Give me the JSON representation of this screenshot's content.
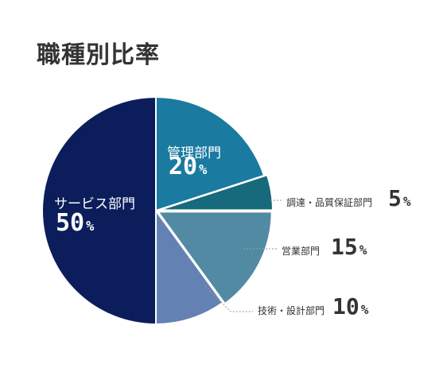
{
  "title": "職種別比率",
  "chart_data": {
    "type": "pie",
    "title": "職種別比率",
    "unit": "%",
    "slices": [
      {
        "label": "管理部門",
        "value": 20,
        "color": "#1a7aa0",
        "label_pos": "inside",
        "label_color": "#ffffff"
      },
      {
        "label": "調達・品質保証部門",
        "value": 5,
        "color": "#17697c",
        "label_pos": "outside",
        "label_color": "#333333"
      },
      {
        "label": "営業部門",
        "value": 15,
        "color": "#538aa3",
        "label_pos": "outside",
        "label_color": "#333333"
      },
      {
        "label": "技術・設計部門",
        "value": 10,
        "color": "#6382b3",
        "label_pos": "outside",
        "label_color": "#333333"
      },
      {
        "label": "サービス部門",
        "value": 50,
        "color": "#0c1d5c",
        "label_pos": "inside",
        "label_color": "#ffffff"
      }
    ]
  }
}
